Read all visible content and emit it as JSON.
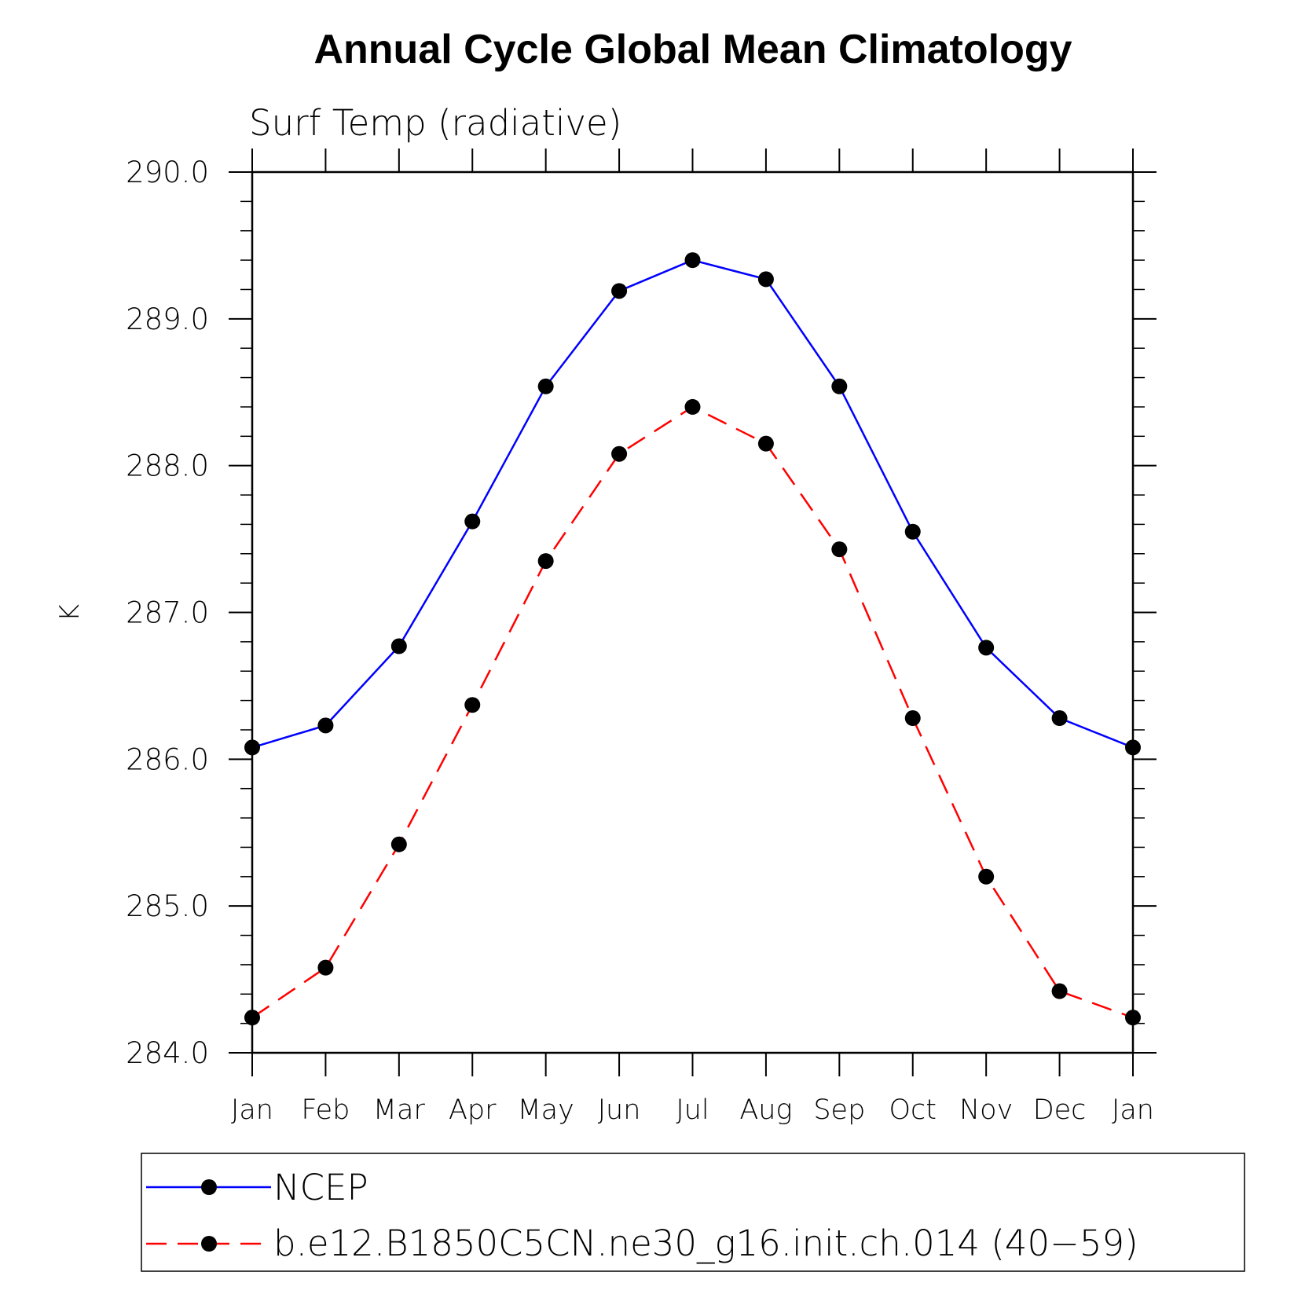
{
  "chart_data": {
    "type": "line",
    "title": "Annual Cycle Global Mean Climatology",
    "subtitle": "Surf Temp (radiative)",
    "ylabel": "K",
    "xlabel": "",
    "ylim": [
      284.0,
      290.0
    ],
    "y_ticks": [
      "284.0",
      "285.0",
      "286.0",
      "287.0",
      "288.0",
      "289.0",
      "290.0"
    ],
    "categories": [
      "Jan",
      "Feb",
      "Mar",
      "Apr",
      "May",
      "Jun",
      "Jul",
      "Aug",
      "Sep",
      "Oct",
      "Nov",
      "Dec",
      "Jan"
    ],
    "series": [
      {
        "name": "NCEP",
        "color": "#0000ff",
        "line_style": "solid",
        "marker": "filled-circle",
        "values": [
          286.08,
          286.23,
          286.77,
          287.62,
          288.54,
          289.19,
          289.4,
          289.27,
          288.54,
          287.55,
          286.76,
          286.28,
          286.08
        ]
      },
      {
        "name": "b.e12.B1850C5CN.ne30_g16.init.ch.014 (40−59)",
        "color": "#ff0000",
        "line_style": "dashed",
        "marker": "filled-circle",
        "values": [
          284.24,
          284.58,
          285.42,
          286.37,
          287.35,
          288.08,
          288.4,
          288.15,
          287.43,
          286.28,
          285.2,
          284.42,
          284.24
        ]
      }
    ],
    "grid": false,
    "legend_position": "bottom"
  }
}
